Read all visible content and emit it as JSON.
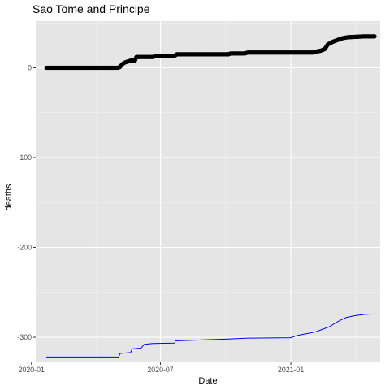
{
  "chart_data": {
    "type": "line",
    "title": "Sao Tome and Principe",
    "xlabel": "Date",
    "ylabel": "deaths",
    "x_type": "date",
    "xlim": [
      "2020-01-07",
      "2021-05-07"
    ],
    "ylim": [
      -328,
      52
    ],
    "x_ticks": [
      {
        "value": "2020-01-01",
        "label": "2020-01"
      },
      {
        "value": "2020-07-01",
        "label": "2020-07"
      },
      {
        "value": "2021-01-01",
        "label": "2021-01"
      }
    ],
    "y_ticks": [
      {
        "value": 0,
        "label": "0"
      },
      {
        "value": -100,
        "label": "-100"
      },
      {
        "value": -200,
        "label": "-200"
      },
      {
        "value": -300,
        "label": "-300"
      }
    ],
    "grid": true,
    "background": "#e5e5e5",
    "series": [
      {
        "style": "points",
        "color": "#000000",
        "points": [
          [
            "2020-01-22",
            0
          ],
          [
            "2020-05-02",
            0
          ],
          [
            "2020-05-05",
            1
          ],
          [
            "2020-05-08",
            4
          ],
          [
            "2020-05-12",
            6
          ],
          [
            "2020-05-16",
            7
          ],
          [
            "2020-05-20",
            8
          ],
          [
            "2020-05-26",
            8
          ],
          [
            "2020-05-28",
            12
          ],
          [
            "2020-06-20",
            12
          ],
          [
            "2020-06-24",
            13
          ],
          [
            "2020-07-20",
            13
          ],
          [
            "2020-07-24",
            15
          ],
          [
            "2020-10-05",
            15
          ],
          [
            "2020-10-08",
            16
          ],
          [
            "2020-10-28",
            16
          ],
          [
            "2020-11-01",
            17
          ],
          [
            "2021-02-01",
            17
          ],
          [
            "2021-02-05",
            18
          ],
          [
            "2021-02-12",
            19
          ],
          [
            "2021-02-18",
            21
          ],
          [
            "2021-02-22",
            26
          ],
          [
            "2021-03-01",
            29
          ],
          [
            "2021-03-08",
            31
          ],
          [
            "2021-03-15",
            33
          ],
          [
            "2021-03-22",
            34
          ],
          [
            "2021-04-15",
            35
          ],
          [
            "2021-04-29",
            35
          ]
        ]
      },
      {
        "style": "line",
        "color": "#0000ff",
        "points": [
          [
            "2020-01-22",
            -322
          ],
          [
            "2020-05-03",
            -322
          ],
          [
            "2020-05-05",
            -318
          ],
          [
            "2020-05-20",
            -317
          ],
          [
            "2020-05-22",
            -313
          ],
          [
            "2020-06-04",
            -312
          ],
          [
            "2020-06-08",
            -308
          ],
          [
            "2020-06-20",
            -307
          ],
          [
            "2020-07-21",
            -306.5
          ],
          [
            "2020-07-22",
            -304
          ],
          [
            "2020-10-05",
            -302
          ],
          [
            "2020-11-01",
            -301
          ],
          [
            "2021-01-01",
            -300.5
          ],
          [
            "2021-01-10",
            -298
          ],
          [
            "2021-02-05",
            -294
          ],
          [
            "2021-02-15",
            -291
          ],
          [
            "2021-02-25",
            -288
          ],
          [
            "2021-03-05",
            -284
          ],
          [
            "2021-03-12",
            -281
          ],
          [
            "2021-03-20",
            -278
          ],
          [
            "2021-04-01",
            -276
          ],
          [
            "2021-04-15",
            -274.5
          ],
          [
            "2021-04-29",
            -274
          ]
        ]
      }
    ]
  }
}
